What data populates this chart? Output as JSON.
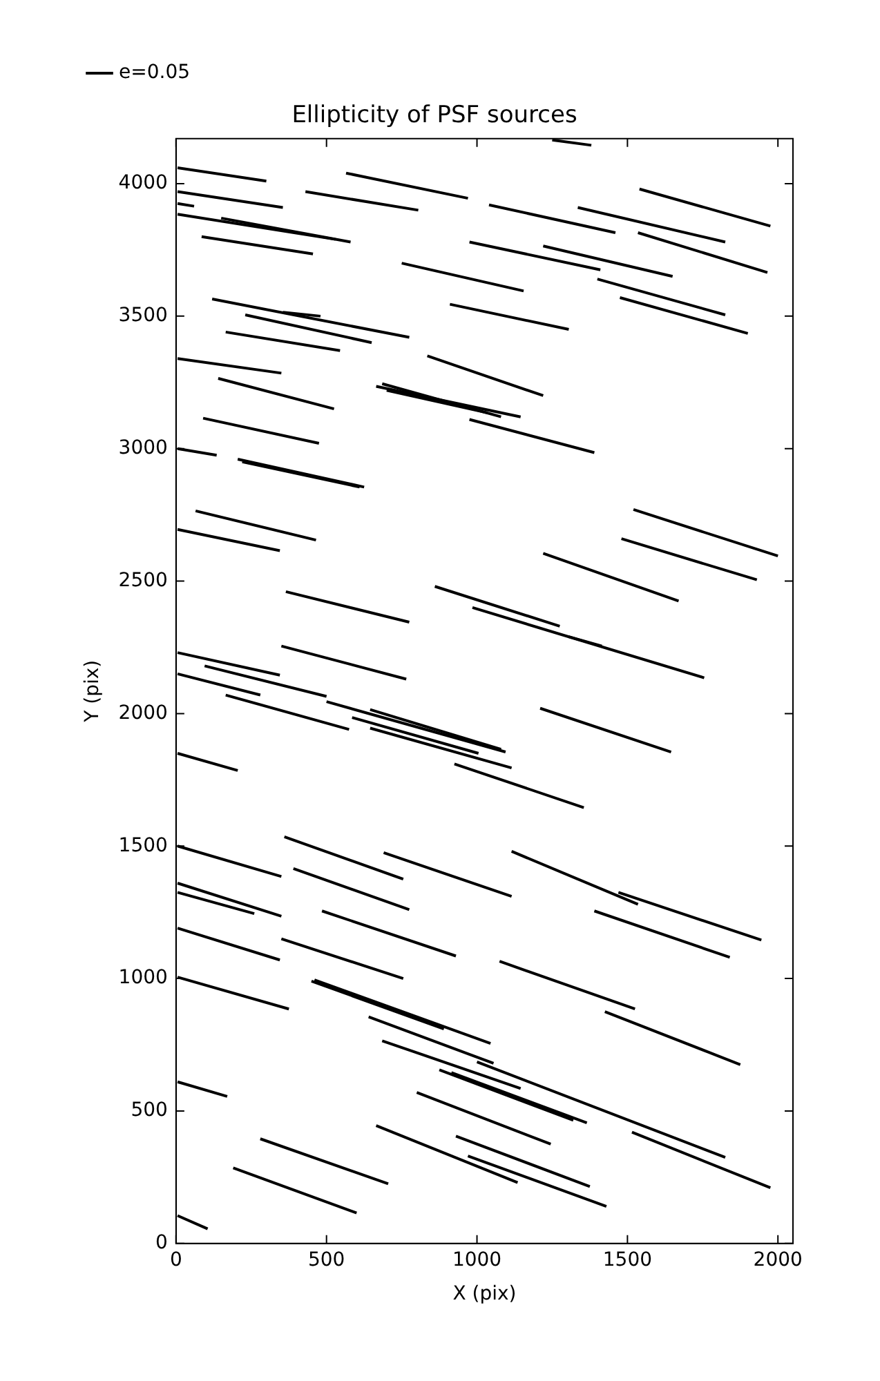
{
  "chart_data": {
    "type": "line",
    "title": "Ellipticity of PSF sources",
    "xlabel": "X (pix)",
    "ylabel": "Y (pix)",
    "xlim": [
      0,
      2050
    ],
    "ylim": [
      0,
      4170
    ],
    "xticks": [
      0,
      500,
      1000,
      1500,
      2000
    ],
    "yticks": [
      0,
      500,
      1000,
      1500,
      2000,
      2500,
      3000,
      3500,
      4000
    ],
    "grid": false,
    "legend": "top left",
    "marker": "none",
    "series": [
      {
        "name": "e=0.05",
        "color": "#000000",
        "x": [
          1250,
          1380
        ],
        "values": [
          4165,
          4145
        ]
      },
      {
        "color": "#000000",
        "x": [
          5,
          300
        ],
        "values": [
          4060,
          4010
        ]
      },
      {
        "color": "#000000",
        "x": [
          565,
          970
        ],
        "values": [
          4040,
          3945
        ]
      },
      {
        "color": "#000000",
        "x": [
          5,
          355
        ],
        "values": [
          3970,
          3910
        ]
      },
      {
        "color": "#000000",
        "x": [
          5,
          60
        ],
        "values": [
          3925,
          3915
        ]
      },
      {
        "color": "#000000",
        "x": [
          430,
          805
        ],
        "values": [
          3970,
          3900
        ]
      },
      {
        "color": "#000000",
        "x": [
          1540,
          1975
        ],
        "values": [
          3980,
          3840
        ]
      },
      {
        "color": "#000000",
        "x": [
          1040,
          1460
        ],
        "values": [
          3920,
          3815
        ]
      },
      {
        "color": "#000000",
        "x": [
          1335,
          1825
        ],
        "values": [
          3910,
          3780
        ]
      },
      {
        "color": "#000000",
        "x": [
          5,
          530
        ],
        "values": [
          3885,
          3790
        ]
      },
      {
        "color": "#000000",
        "x": [
          150,
          580
        ],
        "values": [
          3870,
          3780
        ]
      },
      {
        "color": "#000000",
        "x": [
          85,
          455
        ],
        "values": [
          3800,
          3735
        ]
      },
      {
        "color": "#000000",
        "x": [
          1535,
          1965
        ],
        "values": [
          3815,
          3665
        ]
      },
      {
        "color": "#000000",
        "x": [
          975,
          1410
        ],
        "values": [
          3780,
          3675
        ]
      },
      {
        "color": "#000000",
        "x": [
          1220,
          1650
        ],
        "values": [
          3765,
          3650
        ]
      },
      {
        "color": "#000000",
        "x": [
          750,
          1155
        ],
        "values": [
          3700,
          3595
        ]
      },
      {
        "color": "#000000",
        "x": [
          1400,
          1825
        ],
        "values": [
          3640,
          3505
        ]
      },
      {
        "color": "#000000",
        "x": [
          120,
          775
        ],
        "values": [
          3565,
          3420
        ]
      },
      {
        "color": "#000000",
        "x": [
          355,
          480
        ],
        "values": [
          3515,
          3500
        ]
      },
      {
        "color": "#000000",
        "x": [
          910,
          1305
        ],
        "values": [
          3545,
          3450
        ]
      },
      {
        "color": "#000000",
        "x": [
          1475,
          1900
        ],
        "values": [
          3570,
          3435
        ]
      },
      {
        "color": "#000000",
        "x": [
          230,
          650
        ],
        "values": [
          3505,
          3400
        ]
      },
      {
        "color": "#000000",
        "x": [
          165,
          545
        ],
        "values": [
          3440,
          3370
        ]
      },
      {
        "color": "#000000",
        "x": [
          5,
          350
        ],
        "values": [
          3340,
          3285
        ]
      },
      {
        "color": "#000000",
        "x": [
          835,
          1220
        ],
        "values": [
          3350,
          3200
        ]
      },
      {
        "color": "#000000",
        "x": [
          140,
          525
        ],
        "values": [
          3265,
          3150
        ]
      },
      {
        "color": "#000000",
        "x": [
          665,
          1145
        ],
        "values": [
          3235,
          3120
        ]
      },
      {
        "color": "#000000",
        "x": [
          685,
          1080
        ],
        "values": [
          3245,
          3120
        ]
      },
      {
        "color": "#000000",
        "x": [
          700,
          1035
        ],
        "values": [
          3220,
          3135
        ]
      },
      {
        "color": "#000000",
        "x": [
          975,
          1390
        ],
        "values": [
          3110,
          2985
        ]
      },
      {
        "color": "#000000",
        "x": [
          90,
          475
        ],
        "values": [
          3115,
          3020
        ]
      },
      {
        "color": "#000000",
        "x": [
          5,
          135
        ],
        "values": [
          3000,
          2975
        ]
      },
      {
        "color": "#000000",
        "x": [
          205,
          625
        ],
        "values": [
          2960,
          2855
        ]
      },
      {
        "color": "#000000",
        "x": [
          220,
          610
        ],
        "values": [
          2950,
          2855
        ]
      },
      {
        "color": "#000000",
        "x": [
          65,
          465
        ],
        "values": [
          2765,
          2655
        ]
      },
      {
        "color": "#000000",
        "x": [
          5,
          345
        ],
        "values": [
          2695,
          2615
        ]
      },
      {
        "color": "#000000",
        "x": [
          1520,
          2000
        ],
        "values": [
          2770,
          2595
        ]
      },
      {
        "color": "#000000",
        "x": [
          1480,
          1930
        ],
        "values": [
          2660,
          2505
        ]
      },
      {
        "color": "#000000",
        "x": [
          1220,
          1670
        ],
        "values": [
          2605,
          2425
        ]
      },
      {
        "color": "#000000",
        "x": [
          365,
          775
        ],
        "values": [
          2460,
          2345
        ]
      },
      {
        "color": "#000000",
        "x": [
          860,
          1275
        ],
        "values": [
          2480,
          2330
        ]
      },
      {
        "color": "#000000",
        "x": [
          985,
          1755
        ],
        "values": [
          2400,
          2135
        ]
      },
      {
        "color": "#000000",
        "x": [
          1305,
          1415
        ],
        "values": [
          2290,
          2255
        ]
      },
      {
        "color": "#000000",
        "x": [
          5,
          345
        ],
        "values": [
          2230,
          2145
        ]
      },
      {
        "color": "#000000",
        "x": [
          350,
          765
        ],
        "values": [
          2255,
          2130
        ]
      },
      {
        "color": "#000000",
        "x": [
          95,
          500
        ],
        "values": [
          2180,
          2065
        ]
      },
      {
        "color": "#000000",
        "x": [
          5,
          280
        ],
        "values": [
          2150,
          2070
        ]
      },
      {
        "color": "#000000",
        "x": [
          165,
          575
        ],
        "values": [
          2070,
          1940
        ]
      },
      {
        "color": "#000000",
        "x": [
          500,
          1095
        ],
        "values": [
          2045,
          1855
        ]
      },
      {
        "color": "#000000",
        "x": [
          645,
          1080
        ],
        "values": [
          2015,
          1865
        ]
      },
      {
        "color": "#000000",
        "x": [
          585,
          1005
        ],
        "values": [
          1985,
          1850
        ]
      },
      {
        "color": "#000000",
        "x": [
          645,
          1115
        ],
        "values": [
          1945,
          1795
        ]
      },
      {
        "color": "#000000",
        "x": [
          1210,
          1645
        ],
        "values": [
          2020,
          1855
        ]
      },
      {
        "color": "#000000",
        "x": [
          5,
          205
        ],
        "values": [
          1850,
          1785
        ]
      },
      {
        "color": "#000000",
        "x": [
          925,
          1355
        ],
        "values": [
          1810,
          1645
        ]
      },
      {
        "color": "#000000",
        "x": [
          5,
          350
        ],
        "values": [
          1500,
          1385
        ]
      },
      {
        "color": "#000000",
        "x": [
          360,
          755
        ],
        "values": [
          1535,
          1375
        ]
      },
      {
        "color": "#000000",
        "x": [
          390,
          775
        ],
        "values": [
          1415,
          1260
        ]
      },
      {
        "color": "#000000",
        "x": [
          690,
          1115
        ],
        "values": [
          1475,
          1310
        ]
      },
      {
        "color": "#000000",
        "x": [
          1115,
          1535
        ],
        "values": [
          1480,
          1280
        ]
      },
      {
        "color": "#000000",
        "x": [
          1470,
          1945
        ],
        "values": [
          1325,
          1145
        ]
      },
      {
        "color": "#000000",
        "x": [
          5,
          350
        ],
        "values": [
          1360,
          1235
        ]
      },
      {
        "color": "#000000",
        "x": [
          5,
          260
        ],
        "values": [
          1325,
          1245
        ]
      },
      {
        "color": "#000000",
        "x": [
          485,
          930
        ],
        "values": [
          1255,
          1085
        ]
      },
      {
        "color": "#000000",
        "x": [
          1390,
          1840
        ],
        "values": [
          1255,
          1080
        ]
      },
      {
        "color": "#000000",
        "x": [
          5,
          345
        ],
        "values": [
          1190,
          1070
        ]
      },
      {
        "color": "#000000",
        "x": [
          350,
          755
        ],
        "values": [
          1150,
          1000
        ]
      },
      {
        "color": "#000000",
        "x": [
          1075,
          1525
        ],
        "values": [
          1065,
          885
        ]
      },
      {
        "color": "#000000",
        "x": [
          5,
          375
        ],
        "values": [
          1005,
          885
        ]
      },
      {
        "color": "#000000",
        "x": [
          450,
          890
        ],
        "values": [
          990,
          810
        ]
      },
      {
        "color": "#000000",
        "x": [
          460,
          1045
        ],
        "values": [
          995,
          755
        ]
      },
      {
        "color": "#000000",
        "x": [
          1425,
          1875
        ],
        "values": [
          875,
          675
        ]
      },
      {
        "color": "#000000",
        "x": [
          640,
          1055
        ],
        "values": [
          855,
          680
        ]
      },
      {
        "color": "#000000",
        "x": [
          685,
          1145
        ],
        "values": [
          765,
          585
        ]
      },
      {
        "color": "#000000",
        "x": [
          1000,
          1825
        ],
        "values": [
          685,
          325
        ]
      },
      {
        "color": "#000000",
        "x": [
          875,
          1320
        ],
        "values": [
          655,
          465
        ]
      },
      {
        "color": "#000000",
        "x": [
          915,
          1365
        ],
        "values": [
          645,
          455
        ]
      },
      {
        "color": "#000000",
        "x": [
          5,
          170
        ],
        "values": [
          610,
          555
        ]
      },
      {
        "color": "#000000",
        "x": [
          800,
          1245
        ],
        "values": [
          570,
          375
        ]
      },
      {
        "color": "#000000",
        "x": [
          1515,
          1975
        ],
        "values": [
          420,
          210
        ]
      },
      {
        "color": "#000000",
        "x": [
          665,
          1135
        ],
        "values": [
          445,
          230
        ]
      },
      {
        "color": "#000000",
        "x": [
          930,
          1375
        ],
        "values": [
          405,
          215
        ]
      },
      {
        "color": "#000000",
        "x": [
          970,
          1430
        ],
        "values": [
          330,
          140
        ]
      },
      {
        "color": "#000000",
        "x": [
          280,
          705
        ],
        "values": [
          395,
          225
        ]
      },
      {
        "color": "#000000",
        "x": [
          190,
          600
        ],
        "values": [
          285,
          115
        ]
      },
      {
        "color": "#000000",
        "x": [
          5,
          105
        ],
        "values": [
          105,
          55
        ]
      }
    ]
  }
}
